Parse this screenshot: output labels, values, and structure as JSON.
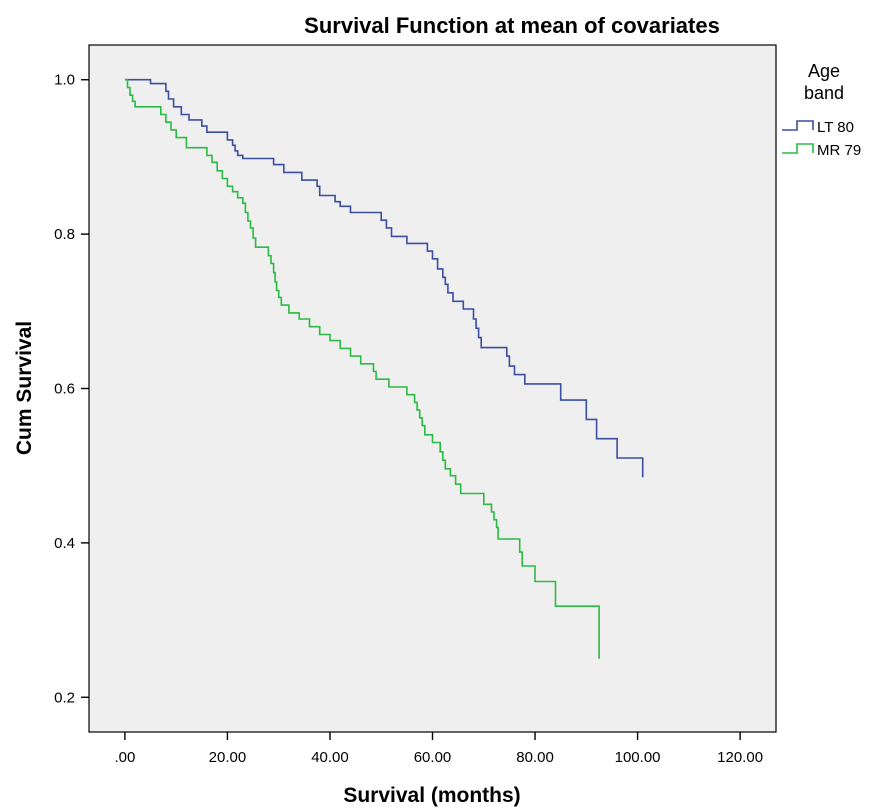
{
  "chart_data": {
    "type": "line",
    "subtype": "step",
    "title": "Survival Function at mean of covariates",
    "xlabel": "Survival (months)",
    "ylabel": "Cum Survival",
    "xlim": [
      -7,
      127
    ],
    "ylim": [
      0.155,
      1.045
    ],
    "xticks": [
      0,
      20,
      40,
      60,
      80,
      100,
      120
    ],
    "xtick_labels": [
      ".00",
      "20.00",
      "40.00",
      "60.00",
      "80.00",
      "100.00",
      "120.00"
    ],
    "yticks": [
      0.2,
      0.4,
      0.6,
      0.8,
      1.0
    ],
    "ytick_labels": [
      "0.2",
      "0.4",
      "0.6",
      "0.8",
      "1.0"
    ],
    "grid": false,
    "background": "#efefef",
    "legend": {
      "title": "Age band",
      "title_lines": [
        "Age",
        "band"
      ],
      "position": "right"
    },
    "series": [
      {
        "name": "LT 80",
        "color": "#3a4ea2",
        "points": [
          [
            0,
            1.0
          ],
          [
            5,
            0.995
          ],
          [
            8,
            0.985
          ],
          [
            8.5,
            0.975
          ],
          [
            9.5,
            0.965
          ],
          [
            11,
            0.955
          ],
          [
            12.5,
            0.948
          ],
          [
            15,
            0.94
          ],
          [
            16,
            0.932
          ],
          [
            20,
            0.922
          ],
          [
            21,
            0.915
          ],
          [
            21.5,
            0.908
          ],
          [
            22,
            0.902
          ],
          [
            23,
            0.898
          ],
          [
            29,
            0.89
          ],
          [
            31,
            0.88
          ],
          [
            34.5,
            0.87
          ],
          [
            37.5,
            0.862
          ],
          [
            38,
            0.85
          ],
          [
            41,
            0.842
          ],
          [
            42,
            0.836
          ],
          [
            44,
            0.828
          ],
          [
            50,
            0.818
          ],
          [
            51,
            0.808
          ],
          [
            52,
            0.797
          ],
          [
            55,
            0.788
          ],
          [
            59,
            0.778
          ],
          [
            60,
            0.768
          ],
          [
            61,
            0.755
          ],
          [
            62,
            0.744
          ],
          [
            62.5,
            0.735
          ],
          [
            63,
            0.724
          ],
          [
            64,
            0.713
          ],
          [
            66,
            0.703
          ],
          [
            68,
            0.69
          ],
          [
            68.5,
            0.678
          ],
          [
            69,
            0.666
          ],
          [
            69.5,
            0.653
          ],
          [
            74.5,
            0.642
          ],
          [
            75,
            0.629
          ],
          [
            76,
            0.618
          ],
          [
            78,
            0.606
          ],
          [
            85,
            0.585
          ],
          [
            90,
            0.56
          ],
          [
            92,
            0.535
          ],
          [
            96,
            0.51
          ],
          [
            101,
            0.485
          ]
        ]
      },
      {
        "name": "MR 79",
        "color": "#2bba43",
        "points": [
          [
            0,
            1.0
          ],
          [
            0.5,
            0.99
          ],
          [
            1,
            0.98
          ],
          [
            1.5,
            0.972
          ],
          [
            2,
            0.965
          ],
          [
            7,
            0.955
          ],
          [
            8,
            0.945
          ],
          [
            9,
            0.935
          ],
          [
            10,
            0.925
          ],
          [
            12,
            0.912
          ],
          [
            16,
            0.902
          ],
          [
            17,
            0.893
          ],
          [
            18,
            0.882
          ],
          [
            19,
            0.872
          ],
          [
            20,
            0.862
          ],
          [
            21,
            0.855
          ],
          [
            22,
            0.847
          ],
          [
            23,
            0.84
          ],
          [
            23.5,
            0.828
          ],
          [
            24,
            0.817
          ],
          [
            24.5,
            0.808
          ],
          [
            25,
            0.795
          ],
          [
            25.5,
            0.783
          ],
          [
            28,
            0.772
          ],
          [
            28.5,
            0.762
          ],
          [
            29,
            0.75
          ],
          [
            29.3,
            0.738
          ],
          [
            29.6,
            0.727
          ],
          [
            30,
            0.718
          ],
          [
            30.5,
            0.708
          ],
          [
            32,
            0.698
          ],
          [
            34,
            0.69
          ],
          [
            36,
            0.68
          ],
          [
            38,
            0.67
          ],
          [
            40,
            0.662
          ],
          [
            42,
            0.652
          ],
          [
            44,
            0.642
          ],
          [
            46,
            0.632
          ],
          [
            48.5,
            0.622
          ],
          [
            49,
            0.612
          ],
          [
            51.5,
            0.602
          ],
          [
            55,
            0.592
          ],
          [
            56.5,
            0.582
          ],
          [
            57,
            0.572
          ],
          [
            57.5,
            0.562
          ],
          [
            58,
            0.552
          ],
          [
            58.5,
            0.54
          ],
          [
            60,
            0.53
          ],
          [
            61.5,
            0.518
          ],
          [
            62,
            0.507
          ],
          [
            62.5,
            0.496
          ],
          [
            63.5,
            0.487
          ],
          [
            64.5,
            0.476
          ],
          [
            65.5,
            0.464
          ],
          [
            70,
            0.45
          ],
          [
            71.5,
            0.44
          ],
          [
            72,
            0.43
          ],
          [
            72.5,
            0.42
          ],
          [
            72.8,
            0.405
          ],
          [
            77,
            0.388
          ],
          [
            77.5,
            0.37
          ],
          [
            80,
            0.35
          ],
          [
            84,
            0.318
          ],
          [
            92.5,
            0.25
          ]
        ]
      }
    ]
  }
}
